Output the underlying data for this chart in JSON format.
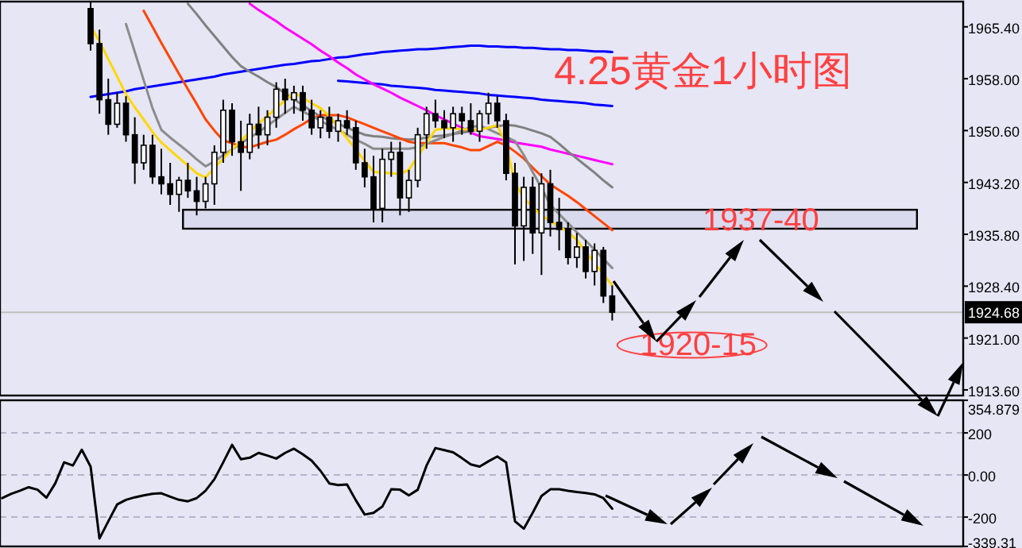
{
  "chart_data": [
    {
      "type": "candlestick",
      "title": "4.25黄金1小时图",
      "categories": [
        null,
        null,
        null,
        null,
        null,
        null,
        null,
        null,
        null,
        null,
        null,
        null,
        null,
        null,
        null,
        null,
        null,
        null,
        null,
        null,
        null,
        null,
        null,
        null,
        null,
        null,
        null,
        null,
        null,
        null,
        null,
        null,
        null,
        null,
        null,
        null,
        null,
        null,
        null,
        null,
        null,
        null,
        null,
        null,
        null,
        null,
        null,
        null,
        null,
        null,
        null,
        null,
        null,
        null,
        null,
        null,
        null,
        null,
        null,
        null
      ],
      "ohlc": [
        [
          1968,
          1969,
          1962,
          1963
        ],
        [
          1963,
          1965,
          1953,
          1955
        ],
        [
          1955,
          1958,
          1950,
          1951.5
        ],
        [
          1951.5,
          1956,
          1951,
          1954.5
        ],
        [
          1954.5,
          1955.5,
          1949,
          1950
        ],
        [
          1950,
          1952.5,
          1943,
          1946
        ],
        [
          1946,
          1950,
          1945,
          1948.5
        ],
        [
          1948.5,
          1950,
          1943,
          1944
        ],
        [
          1944,
          1948,
          1941.5,
          1943
        ],
        [
          1943,
          1946,
          1940,
          1941.5
        ],
        [
          1941.5,
          1944,
          1939,
          1943.5
        ],
        [
          1943.5,
          1946,
          1941,
          1942
        ],
        [
          1942,
          1944,
          1938.5,
          1940.5
        ],
        [
          1940.5,
          1944,
          1939.5,
          1943
        ],
        [
          1943,
          1948.5,
          1940,
          1947.5
        ],
        [
          1947.5,
          1955,
          1946,
          1953.5
        ],
        [
          1953.5,
          1954.5,
          1947,
          1949
        ],
        [
          1949,
          1952,
          1942,
          1947.5
        ],
        [
          1947.5,
          1953,
          1946.5,
          1951.5
        ],
        [
          1951.5,
          1954,
          1948,
          1950
        ],
        [
          1950,
          1953.5,
          1948.5,
          1952.5
        ],
        [
          1952.5,
          1957.5,
          1951,
          1956.5
        ],
        [
          1956.5,
          1958,
          1953,
          1955
        ],
        [
          1955,
          1957,
          1953,
          1956
        ],
        [
          1956,
          1957,
          1952,
          1953.5
        ],
        [
          1953.5,
          1955,
          1950,
          1951
        ],
        [
          1951,
          1953.5,
          1949.5,
          1952.5
        ],
        [
          1952.5,
          1954,
          1949.5,
          1950.5
        ],
        [
          1950.5,
          1953,
          1949,
          1952
        ],
        [
          1952,
          1953.5,
          1950,
          1951
        ],
        [
          1951,
          1952,
          1945,
          1946
        ],
        [
          1946,
          1948,
          1942.5,
          1944
        ],
        [
          1944,
          1947,
          1937.5,
          1939.5
        ],
        [
          1939.5,
          1948,
          1937.5,
          1946.5
        ],
        [
          1946.5,
          1949,
          1944,
          1947.5
        ],
        [
          1947.5,
          1949,
          1938.5,
          1941
        ],
        [
          1941,
          1945,
          1939,
          1943.5
        ],
        [
          1943.5,
          1951,
          1942.5,
          1950
        ],
        [
          1950,
          1954,
          1948,
          1953
        ],
        [
          1953,
          1955,
          1951,
          1952
        ],
        [
          1952,
          1953.5,
          1949.5,
          1951
        ],
        [
          1951,
          1954,
          1949,
          1953
        ],
        [
          1953,
          1954,
          1950,
          1952
        ],
        [
          1952,
          1954.5,
          1950,
          1950.5
        ],
        [
          1950.5,
          1953.5,
          1949,
          1953
        ],
        [
          1953,
          1956,
          1951.5,
          1954.5
        ],
        [
          1954.5,
          1955.5,
          1951,
          1952
        ],
        [
          1952,
          1953,
          1943.5,
          1944.5
        ],
        [
          1944.5,
          1946,
          1931.5,
          1937
        ],
        [
          1937,
          1944,
          1932,
          1942.5
        ],
        [
          1942.5,
          1944,
          1933,
          1936
        ],
        [
          1936,
          1944.5,
          1930,
          1943
        ],
        [
          1943,
          1945,
          1935.5,
          1937.5
        ],
        [
          1937.5,
          1941,
          1933.5,
          1936.5
        ],
        [
          1936.5,
          1937.5,
          1931.5,
          1932.5
        ],
        [
          1932.5,
          1936,
          1931,
          1934
        ],
        [
          1934,
          1935,
          1929.5,
          1930.5
        ],
        [
          1930.5,
          1934.5,
          1928.5,
          1933.5
        ],
        [
          1933.5,
          1934,
          1926,
          1927
        ],
        [
          1927,
          1928.5,
          1923.5,
          1924.68
        ]
      ],
      "series": [
        {
          "type": "line",
          "color": "#0000ff",
          "values": [
            1955.4,
            1955.6,
            1955.8,
            1956.0,
            1956.2,
            1956.5,
            1956.7,
            1956.9,
            1957.1,
            1957.3,
            1957.5,
            1957.7,
            1957.9,
            1958.1,
            1958.3,
            1958.6,
            1958.8,
            1959.0,
            1959.2,
            1959.4,
            1959.6,
            1959.8,
            1960.0,
            1960.1,
            1960.3,
            1960.5,
            1960.6,
            1960.8,
            1961.0,
            1961.1,
            1961.3,
            1961.5,
            1961.6,
            1961.8,
            1961.9,
            1962.0,
            1962.1,
            1962.2,
            1962.2,
            1962.3,
            1962.4,
            1962.5,
            1962.6,
            1962.7,
            1962.7,
            1962.6,
            1962.6,
            1962.5,
            1962.5,
            1962.4,
            1962.4,
            1962.3,
            1962.2,
            1962.2,
            1962.1,
            1962.1,
            1962.0,
            1961.9,
            1961.9,
            1961.8
          ]
        },
        {
          "type": "line",
          "color": "#0000ff",
          "values": [
            null,
            null,
            null,
            null,
            null,
            null,
            null,
            null,
            null,
            null,
            null,
            null,
            null,
            null,
            null,
            null,
            null,
            null,
            null,
            null,
            null,
            null,
            null,
            null,
            null,
            null,
            null,
            null,
            1957.7,
            1957.6,
            1957.5,
            1957.4,
            1957.3,
            1957.2,
            1957.0,
            1956.9,
            1956.8,
            1956.7,
            1956.6,
            1956.4,
            1956.3,
            1956.2,
            1956.1,
            1956.0,
            1955.9,
            1955.7,
            1955.6,
            1955.5,
            1955.4,
            1955.3,
            1955.2,
            1955.0,
            1954.9,
            1954.8,
            1954.7,
            1954.6,
            1954.5,
            1954.3,
            1954.2,
            1954.1
          ]
        },
        {
          "type": "line",
          "color": "#ff00ff",
          "values": [
            null,
            null,
            null,
            null,
            null,
            null,
            null,
            null,
            null,
            null,
            null,
            null,
            null,
            null,
            null,
            null,
            null,
            null,
            1968.7,
            1967.8,
            1967.0,
            1966.2,
            1965.3,
            1964.5,
            1963.7,
            1962.9,
            1962.0,
            1961.2,
            1960.3,
            1959.5,
            1958.6,
            1957.9,
            1957.2,
            1956.6,
            1956.0,
            1955.3,
            1954.7,
            1954.1,
            1953.5,
            1952.8,
            1952.2,
            1951.6,
            1951.0,
            1950.3,
            1949.8,
            1949.6,
            1949.4,
            1949.2,
            1948.9,
            1948.7,
            1948.5,
            1948.3,
            1947.9,
            1947.6,
            1947.3,
            1947.0,
            1946.7,
            1946.4,
            1946.1,
            1945.8
          ]
        },
        {
          "type": "line",
          "color": "#808080",
          "values": [
            null,
            null,
            null,
            null,
            null,
            null,
            null,
            null,
            null,
            null,
            null,
            1968.7,
            1967.2,
            1965.6,
            1964.1,
            1962.6,
            1961.1,
            1959.8,
            1959.0,
            1958.3,
            1957.5,
            1956.8,
            1955.9,
            1955.1,
            1954.2,
            1953.4,
            1952.6,
            1952.1,
            1951.6,
            1951.0,
            1950.5,
            1950.0,
            1949.8,
            1949.7,
            1949.5,
            1949.4,
            1949.3,
            1949.4,
            1949.6,
            1949.8,
            1949.9,
            1950.1,
            1950.3,
            1950.5,
            1950.8,
            1951.0,
            1951.2,
            1951.4,
            1951.3,
            1951.0,
            1950.6,
            1950.2,
            1949.7,
            1948.7,
            1947.6,
            1946.6,
            1945.6,
            1944.6,
            1943.5,
            1942.5
          ]
        },
        {
          "type": "line",
          "color": "#ff4500",
          "values": [
            null,
            null,
            null,
            null,
            null,
            null,
            1967.7,
            1965.4,
            1963.1,
            1960.9,
            1958.7,
            1956.5,
            1954.4,
            1952.2,
            1950.6,
            1949.2,
            1948.8,
            1948.3,
            1948.2,
            1948.6,
            1949.0,
            1949.3,
            1950.0,
            1950.8,
            1951.5,
            1952.3,
            1952.8,
            1952.8,
            1952.8,
            1952.5,
            1952.0,
            1951.5,
            1951.0,
            1950.5,
            1950.0,
            1949.5,
            1949.0,
            1948.8,
            1948.8,
            1948.8,
            1948.8,
            1948.5,
            1948.2,
            1947.8,
            1947.8,
            1948.4,
            1949.0,
            1948.5,
            1947.6,
            1946.6,
            1945.3,
            1944.1,
            1942.9,
            1942.1,
            1941.3,
            1940.4,
            1939.4,
            1938.4,
            1937.4,
            1936.4
          ]
        },
        {
          "type": "line",
          "color": "#8c8c8c",
          "values": [
            null,
            null,
            null,
            null,
            1965.8,
            1961.8,
            1957.8,
            1953.8,
            1950.7,
            1949.6,
            1948.6,
            1947.6,
            1946.5,
            1945.5,
            1946.2,
            1947.1,
            1947.9,
            1948.8,
            1949.6,
            1950.4,
            1951.3,
            1952.2,
            1953.1,
            1954.0,
            1953.3,
            1952.7,
            1952.0,
            1951.3,
            1950.7,
            1950.0,
            1949.3,
            1948.7,
            1948.0,
            1948.0,
            1948.0,
            1948.0,
            1948.0,
            1948.2,
            1948.7,
            1949.2,
            1949.7,
            1950.1,
            1950.6,
            1951.1,
            1951.3,
            1950.8,
            1950.2,
            1949.7,
            1949.1,
            1947.1,
            1944.7,
            1942.4,
            1940.0,
            1938.7,
            1937.4,
            1936.1,
            1934.9,
            1933.6,
            1932.3,
            1931.0
          ]
        },
        {
          "type": "line",
          "color": "#ffd700",
          "values": [
            1965.5,
            1963.3,
            1960.8,
            1958.3,
            1955.8,
            1953.9,
            1952.2,
            1950.4,
            1948.9,
            1947.8,
            1946.7,
            1945.6,
            1944.5,
            1943.9,
            1945.3,
            1946.6,
            1947.9,
            1949.1,
            1950.4,
            1951.6,
            1952.7,
            1953.8,
            1954.9,
            1956.0,
            1955.3,
            1954.5,
            1953.8,
            1952.7,
            1951.1,
            1949.5,
            1947.9,
            1946.3,
            1944.7,
            1944.6,
            1944.5,
            1944.4,
            1945.0,
            1946.9,
            1948.8,
            1950.7,
            1950.9,
            1950.9,
            1950.8,
            1950.7,
            1950.7,
            1951.0,
            1951.4,
            1948.6,
            1943.1,
            1941.0,
            1939.7,
            1938.5,
            1937.7,
            1936.9,
            1936.1,
            1935.0,
            1933.3,
            1931.7,
            1930.1,
            1928.5
          ]
        }
      ],
      "ylim": [
        1912.8,
        1969.0
      ],
      "yticks": [
        {
          "value": 1965.4,
          "label": "1965.40"
        },
        {
          "value": 1958.0,
          "label": "1958.00"
        },
        {
          "value": 1950.6,
          "label": "1950.60"
        },
        {
          "value": 1943.2,
          "label": "1943.20"
        },
        {
          "value": 1935.8,
          "label": "1935.80"
        },
        {
          "value": 1928.4,
          "label": "1928.40"
        },
        {
          "value": 1921.0,
          "label": "1921.00"
        },
        {
          "value": 1913.6,
          "label": "1913.60"
        }
      ],
      "tick_labels": "y",
      "ref_lines": [
        {
          "axis": "y",
          "value": 1924.68,
          "label": "1924.68",
          "color": "#c0c0c0"
        }
      ],
      "bands": [
        {
          "axis": "y",
          "from": 1936.6,
          "to": 1939.3,
          "label": "1937-40",
          "color": "#dadaee"
        }
      ],
      "annotations": [
        "1920-15"
      ]
    },
    {
      "type": "line",
      "categories": [
        null,
        null,
        null,
        null,
        null,
        null,
        null,
        null,
        null,
        null,
        null,
        null,
        null,
        null,
        null,
        null,
        null,
        null,
        null,
        null,
        null,
        null,
        null,
        null,
        null,
        null,
        null,
        null,
        null,
        null,
        null,
        null,
        null,
        null,
        null,
        null,
        null,
        null,
        null,
        null,
        null,
        null,
        null,
        null,
        null,
        null,
        null,
        null,
        null,
        null,
        null,
        null,
        null,
        null,
        null,
        null,
        null,
        null,
        null,
        null,
        null,
        null,
        null,
        null,
        null,
        null,
        null,
        null,
        null,
        null
      ],
      "series": [
        {
          "color": "#000000",
          "values": [
            -110,
            -90,
            -75,
            -58,
            -70,
            -108,
            -40,
            60,
            45,
            120,
            40,
            -302,
            -220,
            -140,
            -118,
            -106,
            -97,
            -89,
            -87,
            -103,
            -118,
            -125,
            -110,
            -75,
            -20,
            60,
            143,
            75,
            82,
            105,
            92,
            78,
            105,
            125,
            98,
            68,
            20,
            -40,
            -48,
            -45,
            -120,
            -188,
            -180,
            -150,
            -68,
            -70,
            -97,
            -70,
            45,
            128,
            118,
            108,
            80,
            50,
            40,
            65,
            88,
            60,
            -220,
            -255,
            -180,
            -100,
            -68,
            -68,
            -75,
            -81,
            -86,
            -92,
            -110,
            -160
          ]
        }
      ],
      "ylim": [
        -339.313,
        354.879
      ],
      "yticks": [
        354.879,
        200,
        {
          "value": 0,
          "label": "0.00"
        },
        -200,
        {
          "value": -339.313,
          "label": "-339.31"
        }
      ],
      "tick_labels": "y",
      "grid": "y"
    }
  ]
}
